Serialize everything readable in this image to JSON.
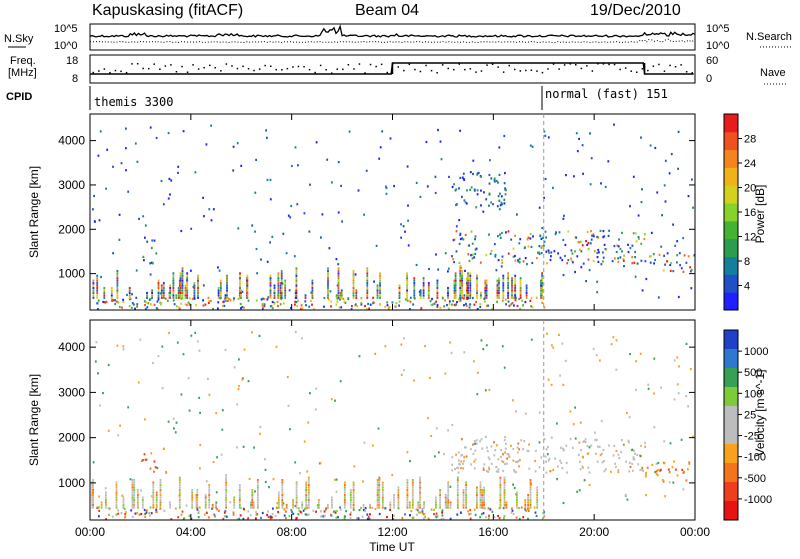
{
  "header": {
    "station": "Kapuskasing (fitACF)",
    "beam": "Beam 04",
    "date": "19/Dec/2010"
  },
  "aux_panels": {
    "nsky_label": "N.Sky",
    "nsky_ticks": [
      "10^5",
      "10^0"
    ],
    "nsearch_label": "N.Search",
    "nsearch_ticks": [
      "10^5",
      "10^0"
    ],
    "freq_label_1": "Freq.",
    "freq_label_2": "[MHz]",
    "freq_ticks": [
      "18",
      "8"
    ],
    "nave_label": "Nave",
    "nave_ticks": [
      "60",
      "0"
    ],
    "cpid_label": "CPID",
    "cpid_segments": [
      {
        "name": "themis 3300",
        "start_hour": 0
      },
      {
        "name": "normal (fast) 151",
        "start_hour": 18
      }
    ]
  },
  "chart_data": [
    {
      "type": "heatmap",
      "title": "",
      "parameter": "Power",
      "ylabel": "Slant Range [km]",
      "xlabel": "",
      "x_ticks": [
        "00:00",
        "04:00",
        "08:00",
        "12:00",
        "16:00",
        "20:00",
        "00:00"
      ],
      "y_ticks": [
        1000,
        2000,
        3000,
        4000
      ],
      "xlim_hours": [
        0,
        24
      ],
      "ylim_km": [
        180,
        4600
      ],
      "colorbar": {
        "label": "Power [dB]",
        "ticks": [
          "4",
          "8",
          "12",
          "16",
          "20",
          "24",
          "28"
        ],
        "range": [
          0,
          30
        ],
        "colors": [
          "#1f1fff",
          "#1e50c8",
          "#147f9b",
          "#2c9c4e",
          "#44b233",
          "#88d12b",
          "#d4d11e",
          "#f1b11a",
          "#f3851c",
          "#ef5120",
          "#e81c1c"
        ]
      },
      "echo_regions": [
        {
          "t": [
            0.2,
            18.0
          ],
          "r": [
            220,
            480
          ],
          "note": "ground scatter band"
        },
        {
          "t": [
            2.0,
            2.6
          ],
          "r": [
            1250,
            1800
          ],
          "note": "echo patch"
        },
        {
          "t": [
            14.3,
            22.0
          ],
          "r": [
            1250,
            2000
          ],
          "note": "main echo band"
        },
        {
          "t": [
            14.2,
            16.5
          ],
          "r": [
            2500,
            3300
          ],
          "note": "upper echoes"
        },
        {
          "t": [
            22.0,
            24.0
          ],
          "r": [
            1050,
            1500
          ],
          "note": "late echoes"
        }
      ]
    },
    {
      "type": "heatmap",
      "title": "",
      "parameter": "Velocity",
      "ylabel": "Slant Range [km]",
      "xlabel": "Time UT",
      "x_ticks": [
        "00:00",
        "04:00",
        "08:00",
        "12:00",
        "16:00",
        "20:00",
        "00:00"
      ],
      "y_ticks": [
        1000,
        2000,
        3000,
        4000
      ],
      "xlim_hours": [
        0,
        24
      ],
      "ylim_km": [
        180,
        4600
      ],
      "colorbar": {
        "label": "Velocity [m s^-1]",
        "ticks": [
          "1000",
          "500",
          "100",
          "25",
          "-25",
          "-100",
          "-500",
          "-1000"
        ],
        "colors": [
          "#2040c8",
          "#2f78d0",
          "#36a055",
          "#7ecb3a",
          "#bdbdbd",
          "#bdbdbd",
          "#f7a11e",
          "#f3741b",
          "#ef3e1e",
          "#e81414"
        ]
      },
      "echo_regions": [
        {
          "t": [
            0.2,
            18.0
          ],
          "r": [
            220,
            480
          ],
          "note": "ground scatter band"
        },
        {
          "t": [
            2.0,
            2.6
          ],
          "r": [
            1250,
            1800
          ],
          "note": "orange echo patch"
        },
        {
          "t": [
            14.3,
            22.0
          ],
          "r": [
            1250,
            2000
          ],
          "note": "grey low-velocity band"
        },
        {
          "t": [
            22.0,
            24.0
          ],
          "r": [
            1050,
            1500
          ],
          "note": "orange late echoes"
        }
      ]
    }
  ]
}
